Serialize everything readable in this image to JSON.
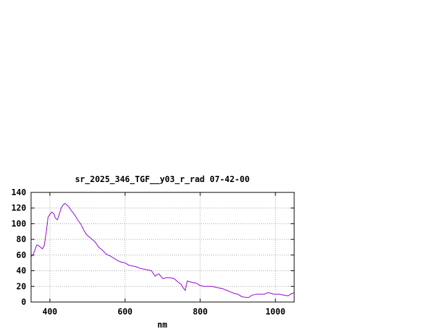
{
  "chart_data": {
    "type": "line",
    "title": "sr_2025_346_TGF__y03_r_rad 07-42-00",
    "xlabel": "nm",
    "ylabel": "",
    "xlim": [
      350,
      1050
    ],
    "ylim": [
      0,
      140
    ],
    "x_ticks": [
      400,
      600,
      800,
      1000
    ],
    "y_ticks": [
      0,
      20,
      40,
      60,
      80,
      100,
      120,
      140
    ],
    "grid": true,
    "line_color": "#9400d3",
    "series": [
      {
        "x": [
          350,
          355,
          360,
          365,
          370,
          375,
          380,
          385,
          390,
          395,
          400,
          405,
          410,
          415,
          420,
          425,
          430,
          435,
          440,
          445,
          450,
          455,
          460,
          465,
          470,
          475,
          480,
          485,
          490,
          495,
          500,
          510,
          520,
          530,
          540,
          550,
          560,
          570,
          580,
          590,
          600,
          610,
          620,
          630,
          640,
          650,
          660,
          670,
          680,
          685,
          690,
          700,
          710,
          720,
          730,
          740,
          750,
          755,
          760,
          763,
          766,
          770,
          780,
          790,
          800,
          810,
          820,
          830,
          840,
          850,
          860,
          870,
          880,
          890,
          900,
          910,
          920,
          930,
          935,
          940,
          950,
          960,
          970,
          980,
          990,
          995,
          1000,
          1010,
          1020,
          1030,
          1035,
          1040,
          1050
        ],
        "y": [
          58,
          60,
          66,
          73,
          72,
          70,
          68,
          72,
          88,
          108,
          112,
          115,
          113,
          107,
          105,
          112,
          120,
          124,
          126,
          124,
          122,
          118,
          115,
          112,
          108,
          104,
          101,
          97,
          92,
          88,
          85,
          81,
          77,
          70,
          66,
          61,
          59,
          56,
          53,
          51,
          50,
          47,
          46,
          45,
          43,
          42,
          41,
          40,
          33,
          35,
          36,
          30,
          31,
          31,
          30,
          26,
          22,
          18,
          15,
          22,
          27,
          26,
          25,
          24,
          21,
          20,
          20,
          20,
          19,
          18,
          17,
          15,
          13,
          11,
          10,
          7,
          6,
          6,
          8,
          9,
          10,
          10,
          10,
          12,
          11,
          10,
          10,
          10,
          9,
          8,
          8,
          10,
          12
        ]
      }
    ]
  }
}
